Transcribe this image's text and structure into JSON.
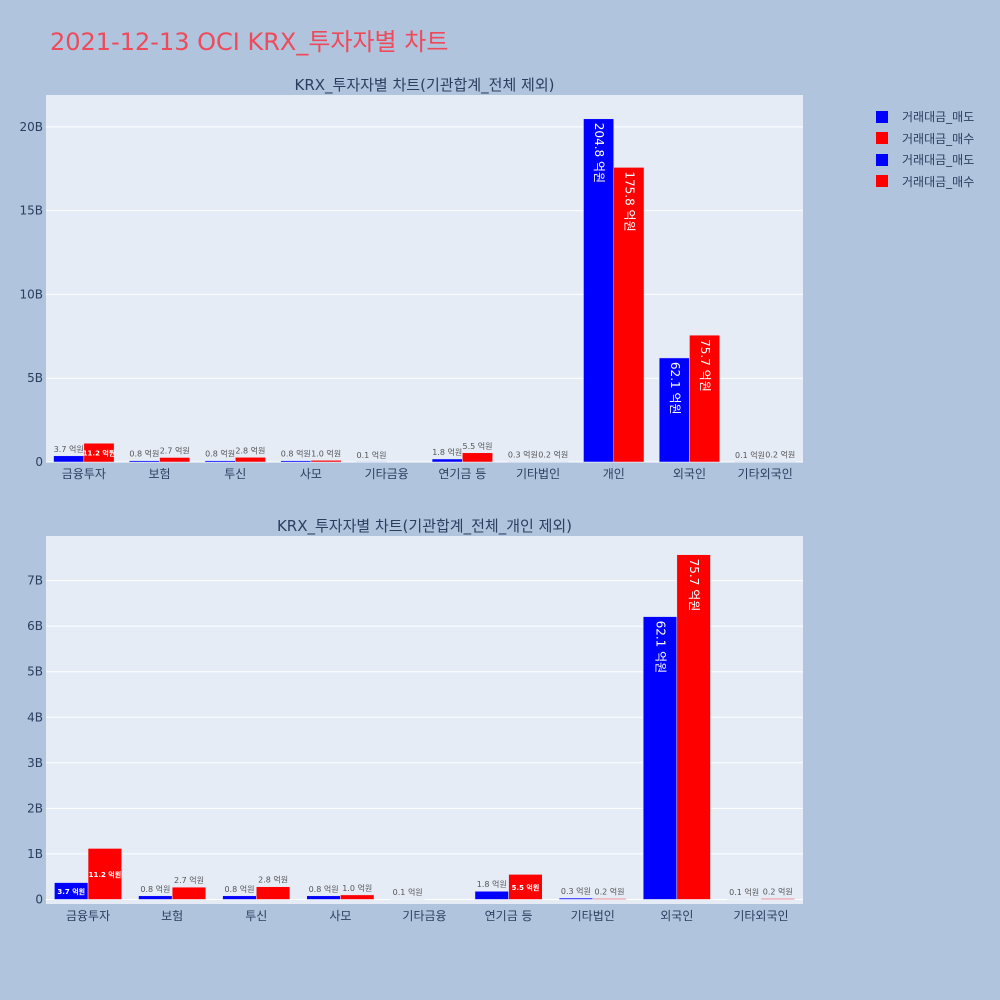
{
  "title": "2021-12-13 OCI KRX_투자자별 차트",
  "colors": {
    "sell": "#0000ff",
    "buy": "#ff0000",
    "plot_bg": "#e5ecf6",
    "page_bg": "#b0c4de",
    "title": "#ef4a5a"
  },
  "legend": [
    {
      "label": "거래대금_매도",
      "color": "#0000ff"
    },
    {
      "label": "거래대금_매수",
      "color": "#ff0000"
    },
    {
      "label": "거래대금_매도",
      "color": "#0000ff"
    },
    {
      "label": "거래대금_매수",
      "color": "#ff0000"
    }
  ],
  "chart_data": [
    {
      "type": "bar",
      "title": "KRX_투자자별 차트(기관합계_전체 제외)",
      "categories": [
        "금융투자",
        "보험",
        "투신",
        "사모",
        "기타금융",
        "연기금 등",
        "기타법인",
        "개인",
        "외국인",
        "기타외국인"
      ],
      "series": [
        {
          "name": "거래대금_매도",
          "color": "#0000ff",
          "values": [
            0.37,
            0.08,
            0.08,
            0.08,
            0.01,
            0.18,
            0.03,
            20.48,
            6.21,
            0.01
          ],
          "labels": [
            "3.7 억원",
            "0.8 억원",
            "0.8 억원",
            "0.8 억원",
            "0.1 억원",
            "1.8 억원",
            "0.3 억원",
            "204.8 억원",
            "62.1 억원",
            "0.1 억원"
          ]
        },
        {
          "name": "거래대금_매수",
          "color": "#ff0000",
          "values": [
            1.12,
            0.27,
            0.28,
            0.1,
            0,
            0.55,
            0.02,
            17.58,
            7.57,
            0.02
          ],
          "labels": [
            "11.2 억원",
            "2.7 억원",
            "2.8 억원",
            "1.0 억원",
            "",
            "5.5 억원",
            "0.2 억원",
            "175.8 억원",
            "75.7 억원",
            "0.2 억원"
          ]
        }
      ],
      "ylim": [
        0,
        21.9
      ],
      "yticks": [
        0,
        5,
        10,
        15,
        20
      ],
      "ytick_labels": [
        "0",
        "5B",
        "10B",
        "15B",
        "20B"
      ]
    },
    {
      "type": "bar",
      "title": "KRX_투자자별 차트(기관합계_전체_개인 제외)",
      "categories": [
        "금융투자",
        "보험",
        "투신",
        "사모",
        "기타금융",
        "연기금 등",
        "기타법인",
        "외국인",
        "기타외국인"
      ],
      "series": [
        {
          "name": "거래대금_매도",
          "color": "#0000ff",
          "values": [
            0.37,
            0.08,
            0.08,
            0.08,
            0.01,
            0.18,
            0.03,
            6.21,
            0.01
          ],
          "labels": [
            "3.7 억원",
            "0.8 억원",
            "0.8 억원",
            "0.8 억원",
            "0.1 억원",
            "1.8 억원",
            "0.3 억원",
            "62.1 억원",
            "0.1 억원"
          ]
        },
        {
          "name": "거래대금_매수",
          "color": "#ff0000",
          "values": [
            1.12,
            0.27,
            0.28,
            0.1,
            0,
            0.55,
            0.02,
            7.57,
            0.02
          ],
          "labels": [
            "11.2 억원",
            "2.7 억원",
            "2.8 억원",
            "1.0 억원",
            "",
            "5.5 억원",
            "0.2 억원",
            "75.7 억원",
            "0.2 억원"
          ]
        }
      ],
      "ylim": [
        -0.1,
        7.98
      ],
      "yticks": [
        0,
        1,
        2,
        3,
        4,
        5,
        6,
        7
      ],
      "ytick_labels": [
        "0",
        "1B",
        "2B",
        "3B",
        "4B",
        "5B",
        "6B",
        "7B"
      ]
    }
  ]
}
